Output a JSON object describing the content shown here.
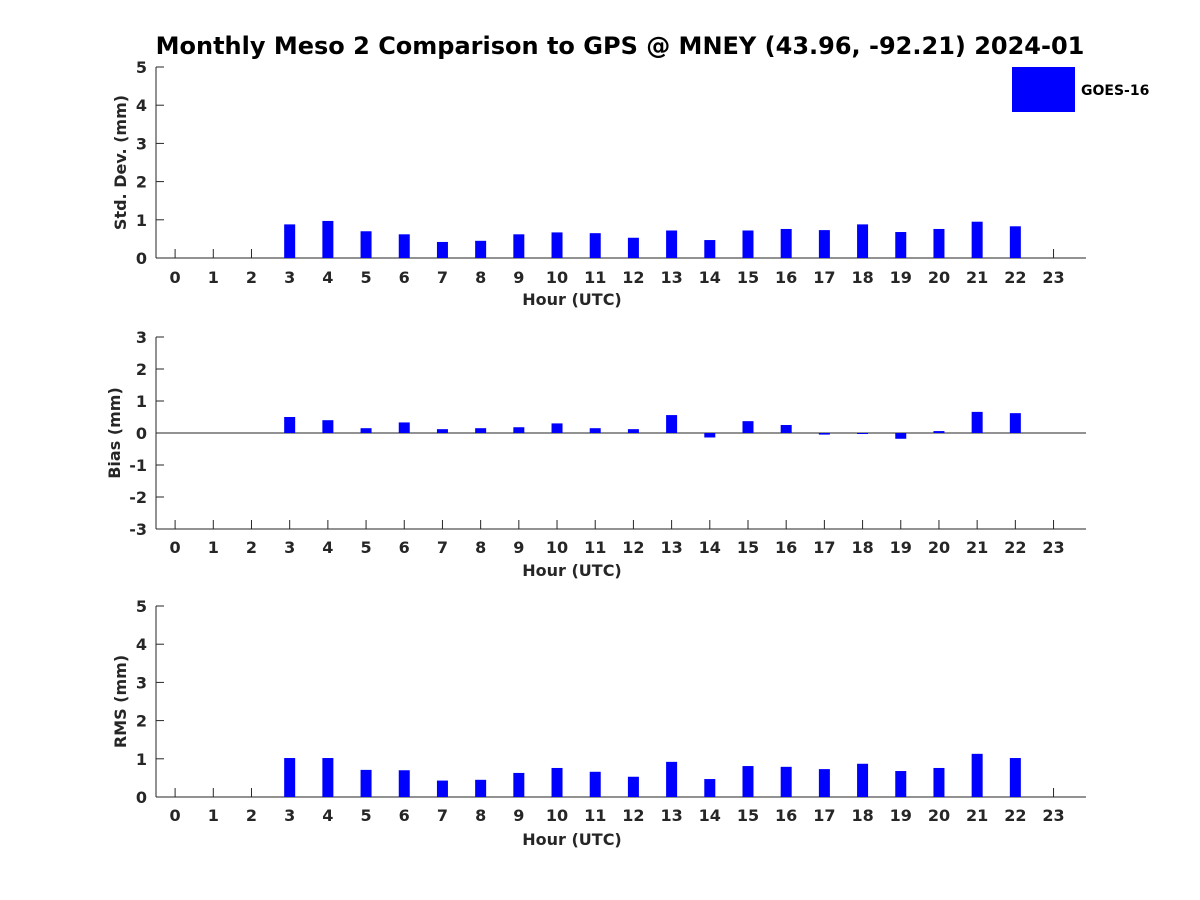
{
  "title": "Monthly Meso 2 Comparison to GPS @ MNEY (43.96, -92.21) 2024-01",
  "legend": {
    "label": "GOES-16",
    "placement": "top-right",
    "color": "#0000ff"
  },
  "chart_data": [
    {
      "type": "bar",
      "name": "std-dev",
      "xlabel": "Hour (UTC)",
      "ylabel": "Std. Dev. (mm)",
      "ylim": [
        0,
        5
      ],
      "yticks": [
        "0",
        "1",
        "2",
        "3",
        "4",
        "5"
      ],
      "categories": [
        "0",
        "1",
        "2",
        "3",
        "4",
        "5",
        "6",
        "7",
        "8",
        "9",
        "10",
        "11",
        "12",
        "13",
        "14",
        "15",
        "16",
        "17",
        "18",
        "19",
        "20",
        "21",
        "22",
        "23"
      ],
      "series": [
        {
          "name": "GOES-16",
          "color": "#0000ff",
          "values": [
            null,
            null,
            null,
            0.88,
            0.97,
            0.7,
            0.62,
            0.42,
            0.45,
            0.62,
            0.67,
            0.65,
            0.53,
            0.72,
            0.47,
            0.72,
            0.76,
            0.73,
            0.88,
            0.68,
            0.76,
            0.95,
            0.83,
            null
          ]
        }
      ]
    },
    {
      "type": "bar",
      "name": "bias",
      "xlabel": "Hour (UTC)",
      "ylabel": "Bias (mm)",
      "ylim": [
        -3,
        3
      ],
      "yticks": [
        "-3",
        "-2",
        "-1",
        "0",
        "1",
        "2",
        "3"
      ],
      "categories": [
        "0",
        "1",
        "2",
        "3",
        "4",
        "5",
        "6",
        "7",
        "8",
        "9",
        "10",
        "11",
        "12",
        "13",
        "14",
        "15",
        "16",
        "17",
        "18",
        "19",
        "20",
        "21",
        "22",
        "23"
      ],
      "series": [
        {
          "name": "GOES-16",
          "color": "#0000ff",
          "values": [
            null,
            null,
            null,
            0.5,
            0.4,
            0.15,
            0.33,
            0.12,
            0.15,
            0.18,
            0.3,
            0.15,
            0.12,
            0.56,
            -0.14,
            0.37,
            0.25,
            -0.05,
            0.0,
            -0.18,
            0.06,
            0.66,
            0.62,
            null
          ]
        }
      ]
    },
    {
      "type": "bar",
      "name": "rms",
      "xlabel": "Hour (UTC)",
      "ylabel": "RMS (mm)",
      "ylim": [
        0,
        5
      ],
      "yticks": [
        "0",
        "1",
        "2",
        "3",
        "4",
        "5"
      ],
      "categories": [
        "0",
        "1",
        "2",
        "3",
        "4",
        "5",
        "6",
        "7",
        "8",
        "9",
        "10",
        "11",
        "12",
        "13",
        "14",
        "15",
        "16",
        "17",
        "18",
        "19",
        "20",
        "21",
        "22",
        "23"
      ],
      "series": [
        {
          "name": "GOES-16",
          "color": "#0000ff",
          "values": [
            null,
            null,
            null,
            1.02,
            1.02,
            0.71,
            0.7,
            0.43,
            0.45,
            0.63,
            0.76,
            0.66,
            0.53,
            0.92,
            0.47,
            0.81,
            0.79,
            0.73,
            0.87,
            0.68,
            0.76,
            1.13,
            1.02,
            null
          ]
        }
      ]
    }
  ]
}
